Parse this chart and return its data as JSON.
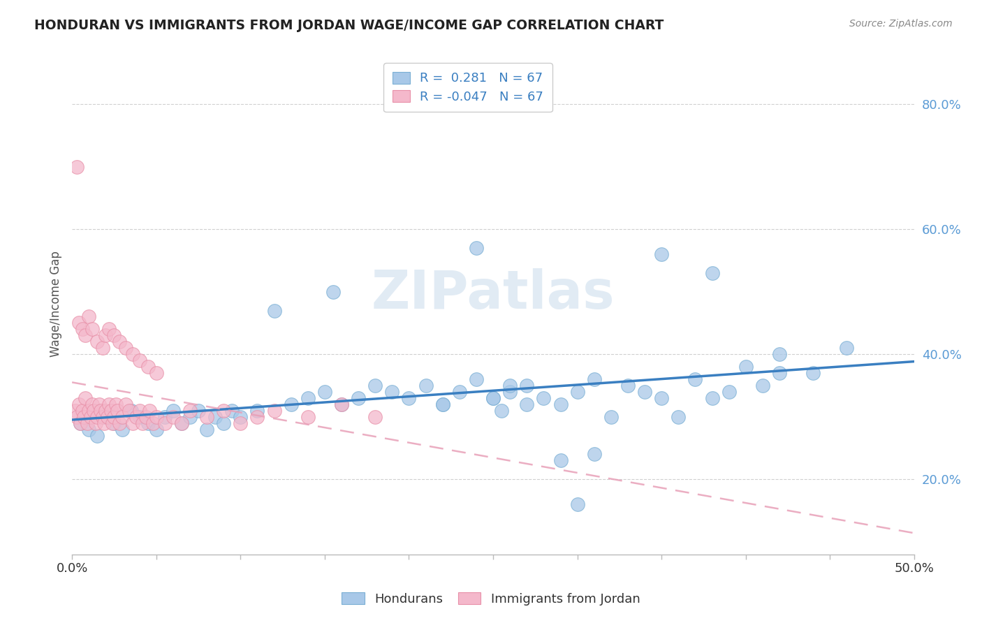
{
  "title": "HONDURAN VS IMMIGRANTS FROM JORDAN WAGE/INCOME GAP CORRELATION CHART",
  "source_text": "Source: ZipAtlas.com",
  "ylabel": "Wage/Income Gap",
  "xlim": [
    0.0,
    0.5
  ],
  "ylim": [
    0.08,
    0.88
  ],
  "R_blue": 0.281,
  "R_pink": -0.047,
  "N": 67,
  "blue_color": "#a8c8e8",
  "blue_edge_color": "#7aafd4",
  "pink_color": "#f4b8cb",
  "pink_edge_color": "#e890a8",
  "blue_line_color": "#3a7fc1",
  "pink_line_color": "#e8a0b8",
  "legend_blue_label": "Hondurans",
  "legend_pink_label": "Immigrants from Jordan",
  "watermark": "ZIPatlas",
  "background_color": "#ffffff",
  "grid_color": "#d0d0d0",
  "title_color": "#222222",
  "ytick_color": "#5b9bd5",
  "source_color": "#888888",
  "blue_x": [
    0.005,
    0.01,
    0.015,
    0.02,
    0.025,
    0.03,
    0.035,
    0.04,
    0.045,
    0.05,
    0.055,
    0.06,
    0.065,
    0.07,
    0.075,
    0.08,
    0.085,
    0.09,
    0.095,
    0.1,
    0.11,
    0.12,
    0.13,
    0.14,
    0.15,
    0.155,
    0.16,
    0.17,
    0.18,
    0.19,
    0.2,
    0.21,
    0.22,
    0.23,
    0.24,
    0.25,
    0.255,
    0.26,
    0.27,
    0.28,
    0.29,
    0.3,
    0.31,
    0.32,
    0.33,
    0.34,
    0.35,
    0.36,
    0.37,
    0.38,
    0.39,
    0.4,
    0.41,
    0.42,
    0.35,
    0.22,
    0.24,
    0.26,
    0.38,
    0.42,
    0.44,
    0.46,
    0.29,
    0.3,
    0.31,
    0.25,
    0.27
  ],
  "blue_y": [
    0.29,
    0.28,
    0.27,
    0.3,
    0.29,
    0.28,
    0.31,
    0.3,
    0.29,
    0.28,
    0.3,
    0.31,
    0.29,
    0.3,
    0.31,
    0.28,
    0.3,
    0.29,
    0.31,
    0.3,
    0.31,
    0.47,
    0.32,
    0.33,
    0.34,
    0.5,
    0.32,
    0.33,
    0.35,
    0.34,
    0.33,
    0.35,
    0.32,
    0.34,
    0.36,
    0.33,
    0.31,
    0.34,
    0.35,
    0.33,
    0.32,
    0.34,
    0.36,
    0.3,
    0.35,
    0.34,
    0.33,
    0.3,
    0.36,
    0.33,
    0.34,
    0.38,
    0.35,
    0.37,
    0.56,
    0.32,
    0.57,
    0.35,
    0.53,
    0.4,
    0.37,
    0.41,
    0.23,
    0.16,
    0.24,
    0.33,
    0.32
  ],
  "pink_x": [
    0.002,
    0.003,
    0.004,
    0.005,
    0.006,
    0.007,
    0.008,
    0.009,
    0.01,
    0.011,
    0.012,
    0.013,
    0.014,
    0.015,
    0.016,
    0.017,
    0.018,
    0.019,
    0.02,
    0.021,
    0.022,
    0.023,
    0.024,
    0.025,
    0.026,
    0.027,
    0.028,
    0.03,
    0.032,
    0.034,
    0.036,
    0.038,
    0.04,
    0.042,
    0.044,
    0.046,
    0.048,
    0.05,
    0.055,
    0.06,
    0.065,
    0.07,
    0.08,
    0.09,
    0.1,
    0.11,
    0.12,
    0.14,
    0.16,
    0.18,
    0.004,
    0.006,
    0.008,
    0.01,
    0.012,
    0.015,
    0.018,
    0.02,
    0.022,
    0.025,
    0.028,
    0.032,
    0.036,
    0.04,
    0.045,
    0.05,
    0.003
  ],
  "pink_y": [
    0.31,
    0.3,
    0.32,
    0.29,
    0.31,
    0.3,
    0.33,
    0.29,
    0.31,
    0.3,
    0.32,
    0.31,
    0.29,
    0.3,
    0.32,
    0.31,
    0.3,
    0.29,
    0.31,
    0.3,
    0.32,
    0.31,
    0.29,
    0.3,
    0.32,
    0.31,
    0.29,
    0.3,
    0.32,
    0.31,
    0.29,
    0.3,
    0.31,
    0.29,
    0.3,
    0.31,
    0.29,
    0.3,
    0.29,
    0.3,
    0.29,
    0.31,
    0.3,
    0.31,
    0.29,
    0.3,
    0.31,
    0.3,
    0.32,
    0.3,
    0.45,
    0.44,
    0.43,
    0.46,
    0.44,
    0.42,
    0.41,
    0.43,
    0.44,
    0.43,
    0.42,
    0.41,
    0.4,
    0.39,
    0.38,
    0.37,
    0.7
  ]
}
